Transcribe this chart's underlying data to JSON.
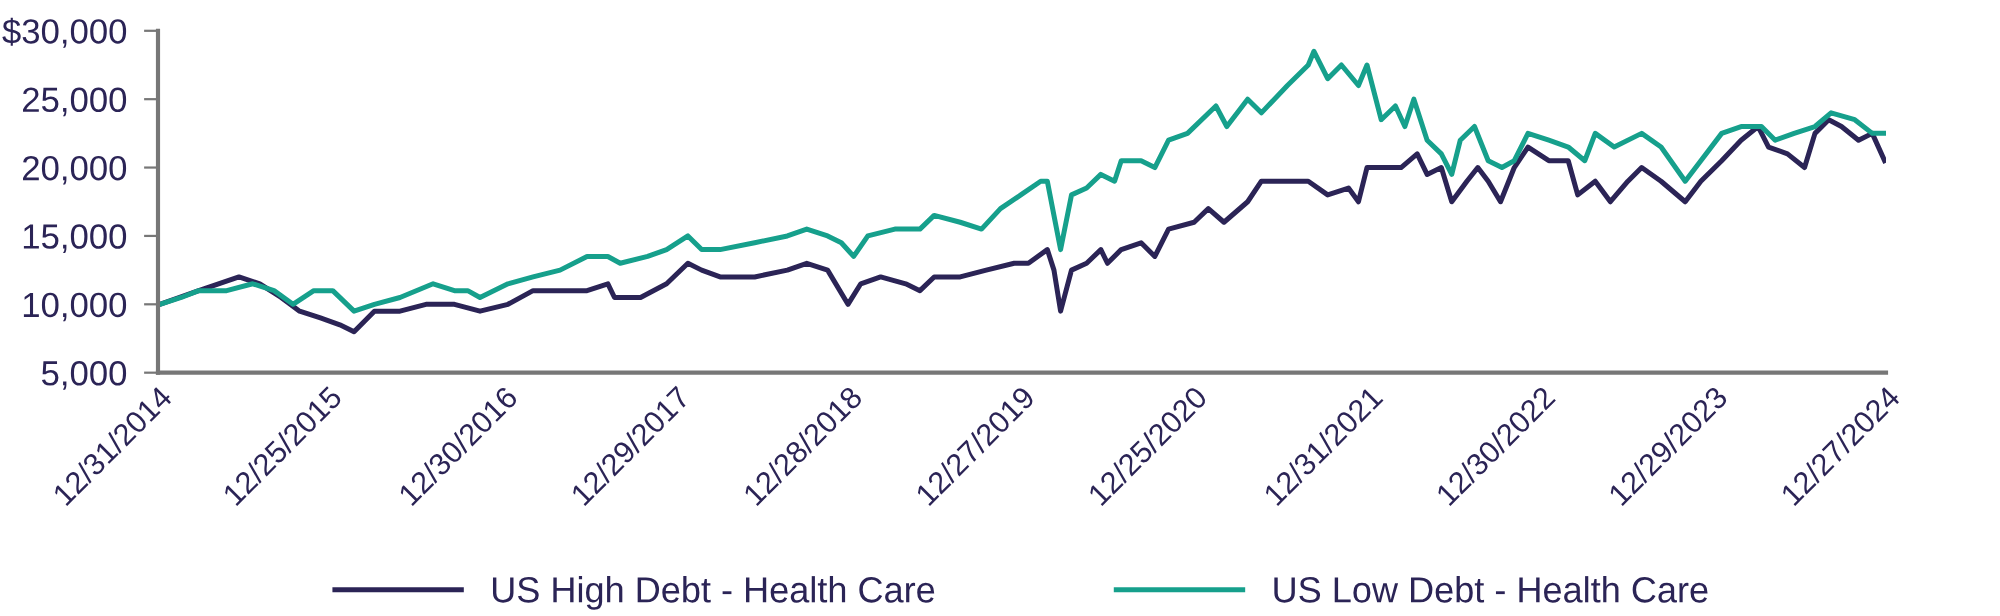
{
  "chart_data": {
    "type": "line",
    "ylim": [
      5000,
      30000
    ],
    "yticks": [
      {
        "value": 5000,
        "label": "5,000"
      },
      {
        "value": 10000,
        "label": "10,000"
      },
      {
        "value": 15000,
        "label": "15,000"
      },
      {
        "value": 20000,
        "label": "20,000"
      },
      {
        "value": 25000,
        "label": "25,000"
      },
      {
        "value": 30000,
        "label": "$30,000"
      }
    ],
    "xlim": [
      "2014-12-31",
      "2024-12-27"
    ],
    "xticks": [
      {
        "value": "2014-12-31",
        "label": "12/31/2014"
      },
      {
        "value": "2015-12-25",
        "label": "12/25/2015"
      },
      {
        "value": "2016-12-30",
        "label": "12/30/2016"
      },
      {
        "value": "2017-12-29",
        "label": "12/29/2017"
      },
      {
        "value": "2018-12-28",
        "label": "12/28/2018"
      },
      {
        "value": "2019-12-27",
        "label": "12/27/2019"
      },
      {
        "value": "2020-12-25",
        "label": "12/25/2020"
      },
      {
        "value": "2021-12-31",
        "label": "12/31/2021"
      },
      {
        "value": "2022-12-30",
        "label": "12/30/2022"
      },
      {
        "value": "2023-12-29",
        "label": "12/29/2023"
      },
      {
        "value": "2024-12-27",
        "label": "12/27/2024"
      }
    ],
    "legend": "bottom",
    "line_style": "solid",
    "series": [
      {
        "name": "US High Debt - Health Care",
        "color": "#2b2456",
        "x": [
          "2015-01-04",
          "2015-03-27",
          "2015-06-20",
          "2015-08-03",
          "2015-09-17",
          "2015-10-26",
          "2015-12-09",
          "2016-01-19",
          "2016-02-18",
          "2016-04-01",
          "2016-05-25",
          "2016-07-19",
          "2016-09-17",
          "2016-11-10",
          "2017-01-08",
          "2017-03-02",
          "2017-04-28",
          "2017-06-24",
          "2017-08-07",
          "2017-08-21",
          "2017-10-15",
          "2017-12-09",
          "2018-01-23",
          "2018-02-21",
          "2018-04-01",
          "2018-06-13",
          "2018-08-21",
          "2018-10-01",
          "2018-11-14",
          "2018-12-27",
          "2019-01-23",
          "2019-03-06",
          "2019-04-28",
          "2019-05-28",
          "2019-06-27",
          "2019-08-21",
          "2019-10-15",
          "2019-12-13",
          "2020-01-12",
          "2020-02-21",
          "2020-03-06",
          "2020-03-20",
          "2020-04-12",
          "2020-05-14",
          "2020-06-13",
          "2020-06-27",
          "2020-07-26",
          "2020-09-06",
          "2020-10-05",
          "2020-11-03",
          "2020-12-27",
          "2021-01-26",
          "2021-02-28",
          "2021-04-19",
          "2021-05-18",
          "2021-06-27",
          "2021-08-25",
          "2021-10-05",
          "2021-11-18",
          "2021-12-09",
          "2021-12-27",
          "2022-02-11",
          "2022-03-09",
          "2022-04-12",
          "2022-05-03",
          "2022-06-02",
          "2022-06-24",
          "2022-07-26",
          "2022-08-18",
          "2022-09-09",
          "2022-10-05",
          "2022-11-03",
          "2022-12-02",
          "2023-01-15",
          "2023-02-25",
          "2023-03-17",
          "2023-04-23",
          "2023-05-25",
          "2023-07-01",
          "2023-07-30",
          "2023-09-09",
          "2023-10-30",
          "2023-12-02",
          "2024-01-15",
          "2024-02-25",
          "2024-04-01",
          "2024-04-23",
          "2024-06-02",
          "2024-07-08",
          "2024-07-30",
          "2024-08-28",
          "2024-09-24",
          "2024-10-30",
          "2024-11-28",
          "2024-12-24"
        ],
        "values": [
          10000,
          11000,
          12000,
          11500,
          10500,
          9500,
          9000,
          8500,
          8000,
          9500,
          9500,
          10000,
          10000,
          9500,
          10000,
          11000,
          11000,
          11000,
          11500,
          10500,
          10500,
          11500,
          13000,
          12500,
          12000,
          12000,
          12500,
          13000,
          12500,
          10000,
          11500,
          12000,
          11500,
          11000,
          12000,
          12000,
          12500,
          13000,
          13000,
          14000,
          12500,
          9500,
          12500,
          13000,
          14000,
          13000,
          14000,
          14500,
          13500,
          15500,
          16000,
          17000,
          16000,
          17500,
          19000,
          19000,
          19000,
          18000,
          18500,
          17500,
          20000,
          20000,
          20000,
          21000,
          19500,
          20000,
          17500,
          19000,
          20000,
          19000,
          17500,
          20000,
          21500,
          20500,
          20500,
          18000,
          19000,
          17500,
          19000,
          20000,
          19000,
          17500,
          19000,
          20500,
          22000,
          23000,
          21500,
          21000,
          20000,
          22500,
          23500,
          23000,
          22000,
          22500,
          20500
        ]
      },
      {
        "name": "US Low Debt - Health Care",
        "color": "#16a08c",
        "x": [
          "2015-01-04",
          "2015-02-18",
          "2015-03-27",
          "2015-05-25",
          "2015-07-19",
          "2015-09-02",
          "2015-10-12",
          "2015-11-25",
          "2016-01-04",
          "2016-02-18",
          "2016-04-01",
          "2016-05-25",
          "2016-08-03",
          "2016-09-17",
          "2016-10-15",
          "2016-11-10",
          "2017-01-08",
          "2017-03-02",
          "2017-04-28",
          "2017-06-24",
          "2017-08-07",
          "2017-09-02",
          "2017-10-30",
          "2017-12-09",
          "2018-01-23",
          "2018-02-21",
          "2018-04-01",
          "2018-06-13",
          "2018-08-21",
          "2018-10-01",
          "2018-11-14",
          "2018-12-13",
          "2019-01-08",
          "2019-02-07",
          "2019-04-05",
          "2019-05-28",
          "2019-06-27",
          "2019-08-21",
          "2019-10-05",
          "2019-11-14",
          "2019-12-27",
          "2020-02-07",
          "2020-02-21",
          "2020-03-06",
          "2020-03-20",
          "2020-04-12",
          "2020-05-14",
          "2020-06-13",
          "2020-07-12",
          "2020-07-26",
          "2020-09-06",
          "2020-10-05",
          "2020-11-03",
          "2020-12-13",
          "2021-02-11",
          "2021-03-06",
          "2021-04-19",
          "2021-05-18",
          "2021-07-12",
          "2021-08-25",
          "2021-09-06",
          "2021-10-05",
          "2021-11-03",
          "2021-12-09",
          "2021-12-27",
          "2022-01-26",
          "2022-02-25",
          "2022-03-17",
          "2022-04-05",
          "2022-05-03",
          "2022-06-02",
          "2022-06-24",
          "2022-07-12",
          "2022-08-11",
          "2022-09-09",
          "2022-10-08",
          "2022-11-03",
          "2022-12-02",
          "2023-01-15",
          "2023-02-25",
          "2023-04-01",
          "2023-04-23",
          "2023-06-02",
          "2023-07-30",
          "2023-09-09",
          "2023-10-30",
          "2023-12-02",
          "2024-01-15",
          "2024-02-25",
          "2024-04-08",
          "2024-05-07",
          "2024-06-16",
          "2024-07-30",
          "2024-09-02",
          "2024-10-22",
          "2024-11-28",
          "2024-12-24"
        ],
        "values": [
          10000,
          10500,
          11000,
          11000,
          11500,
          11000,
          10000,
          11000,
          11000,
          9500,
          10000,
          10500,
          11500,
          11000,
          11000,
          10500,
          11500,
          12000,
          12500,
          13500,
          13500,
          13000,
          13500,
          14000,
          15000,
          14000,
          14000,
          14500,
          15000,
          15500,
          15000,
          14500,
          13500,
          15000,
          15500,
          15500,
          16500,
          16000,
          15500,
          17000,
          18000,
          19000,
          19000,
          16500,
          14000,
          18000,
          18500,
          19500,
          19000,
          20500,
          20500,
          20000,
          22000,
          22500,
          24500,
          23000,
          25000,
          24000,
          26000,
          27500,
          28500,
          26500,
          27500,
          26000,
          27500,
          23500,
          24500,
          23000,
          25000,
          22000,
          21000,
          19500,
          22000,
          23000,
          20500,
          20000,
          20500,
          22500,
          22000,
          21500,
          20500,
          22500,
          21500,
          22500,
          21500,
          19000,
          20500,
          22500,
          23000,
          23000,
          22000,
          22500,
          23000,
          24000,
          23500,
          22500,
          22500
        ]
      }
    ]
  }
}
